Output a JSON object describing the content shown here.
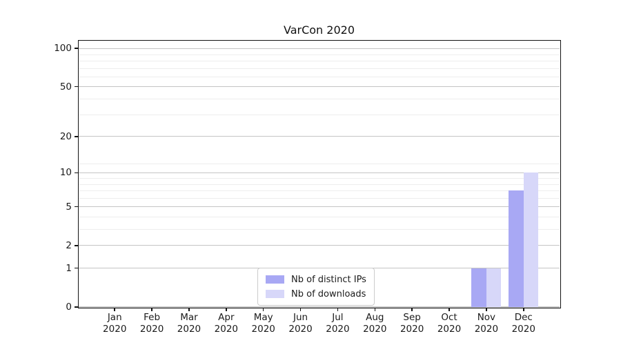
{
  "chart_data": {
    "type": "bar",
    "title": "VarCon 2020",
    "x_categories": [
      "Jan",
      "Feb",
      "Mar",
      "Apr",
      "May",
      "Jun",
      "Jul",
      "Aug",
      "Sep",
      "Oct",
      "Nov",
      "Dec"
    ],
    "x_year": "2020",
    "series": [
      {
        "name": "Nb of distinct IPs",
        "color": "#a8a8f4",
        "values": [
          0,
          0,
          0,
          0,
          0,
          0,
          0,
          0,
          0,
          0,
          1,
          7
        ]
      },
      {
        "name": "Nb of downloads",
        "color": "#d7d7f9",
        "values": [
          0,
          0,
          0,
          0,
          0,
          0,
          0,
          0,
          0,
          0,
          1,
          10
        ]
      }
    ],
    "y_scale": "log1p",
    "ylim": [
      0,
      115
    ],
    "y_max": 115,
    "y_ticks": [
      0,
      1,
      2,
      5,
      10,
      20,
      50,
      100
    ],
    "y_minor_gridlines": [
      3,
      4,
      6,
      7,
      8,
      9,
      12,
      30,
      40,
      60,
      70,
      80,
      90
    ],
    "grid": true,
    "legend_position": "lower center",
    "colors": {
      "grid_major": "#c4c4c4",
      "grid_minor": "#ededed",
      "spine": "#111111",
      "text": "#1a1a1a",
      "background": "#ffffff"
    }
  }
}
